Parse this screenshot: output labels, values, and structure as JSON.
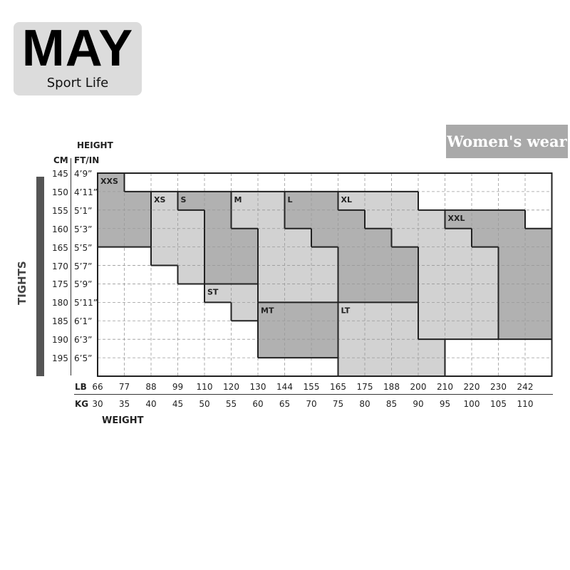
{
  "logo": {
    "main": "MAY",
    "sub": "Sport Life"
  },
  "badge": "Women's wear",
  "side_label": "TIGHTS",
  "chart_data": {
    "type": "heatmap",
    "title": "",
    "y_title": "HEIGHT",
    "y_units": [
      "CM",
      "FT/IN"
    ],
    "cm_ticks": [
      "145",
      "150",
      "155",
      "160",
      "165",
      "170",
      "175",
      "180",
      "185",
      "190",
      "195"
    ],
    "ftin_ticks": [
      "4’9”",
      "4’11”",
      "5’1”",
      "5’3”",
      "5’5”",
      "5’7”",
      "5’9”",
      "5’11”",
      "6’1”",
      "6’3”",
      "6’5”"
    ],
    "x_title": "WEIGHT",
    "x_units": [
      "LB",
      "KG"
    ],
    "lb_ticks": [
      "66",
      "77",
      "88",
      "99",
      "110",
      "120",
      "130",
      "144",
      "155",
      "165",
      "175",
      "188",
      "200",
      "210",
      "220",
      "230",
      "242"
    ],
    "kg_ticks": [
      "30",
      "35",
      "40",
      "45",
      "50",
      "55",
      "60",
      "65",
      "70",
      "75",
      "80",
      "85",
      "90",
      "95",
      "100",
      "105",
      "110"
    ],
    "shades": {
      "dark": "#b1b1b1",
      "light": "#d2d2d2"
    },
    "sizes": [
      {
        "size": "XXS",
        "shade": "dark",
        "label_at": [
          0,
          0
        ],
        "cols": [
          [
            0,
            0,
            3
          ],
          [
            1,
            1,
            3
          ]
        ]
      },
      {
        "size": "XS",
        "shade": "light",
        "label_at": [
          2,
          1
        ],
        "cols": [
          [
            2,
            1,
            4
          ],
          [
            3,
            2,
            5
          ]
        ]
      },
      {
        "size": "S",
        "shade": "dark",
        "label_at": [
          3,
          1
        ],
        "cols": [
          [
            3,
            1,
            1
          ],
          [
            4,
            1,
            5
          ],
          [
            5,
            3,
            5
          ]
        ]
      },
      {
        "size": "ST",
        "shade": "light",
        "label_at": [
          4,
          6
        ],
        "cols": [
          [
            4,
            6,
            6
          ],
          [
            5,
            6,
            7
          ]
        ]
      },
      {
        "size": "M",
        "shade": "light",
        "label_at": [
          5,
          1
        ],
        "cols": [
          [
            5,
            1,
            2
          ],
          [
            6,
            1,
            6
          ],
          [
            7,
            3,
            6
          ],
          [
            8,
            4,
            6
          ]
        ]
      },
      {
        "size": "MT",
        "shade": "dark",
        "label_at": [
          6,
          7
        ],
        "cols": [
          [
            6,
            7,
            9
          ],
          [
            7,
            7,
            9
          ],
          [
            8,
            7,
            9
          ]
        ]
      },
      {
        "size": "L",
        "shade": "dark",
        "label_at": [
          7,
          1
        ],
        "cols": [
          [
            7,
            1,
            2
          ],
          [
            8,
            1,
            3
          ],
          [
            9,
            2,
            6
          ],
          [
            10,
            3,
            6
          ],
          [
            11,
            4,
            6
          ]
        ]
      },
      {
        "size": "XL",
        "shade": "light",
        "label_at": [
          9,
          1
        ],
        "cols": [
          [
            9,
            1,
            1
          ],
          [
            10,
            1,
            2
          ],
          [
            11,
            1,
            3
          ],
          [
            12,
            2,
            8
          ],
          [
            13,
            3,
            8
          ],
          [
            14,
            4,
            8
          ]
        ]
      },
      {
        "size": "LT",
        "shade": "light",
        "label_at": [
          9,
          7
        ],
        "cols": [
          [
            9,
            7,
            10
          ],
          [
            10,
            7,
            10
          ],
          [
            11,
            7,
            10
          ],
          [
            12,
            9,
            10
          ]
        ]
      },
      {
        "size": "XXL",
        "shade": "dark",
        "label_at": [
          13,
          2
        ],
        "cols": [
          [
            13,
            2,
            2
          ],
          [
            14,
            2,
            3
          ],
          [
            15,
            2,
            8
          ],
          [
            16,
            3,
            8
          ]
        ]
      }
    ]
  }
}
